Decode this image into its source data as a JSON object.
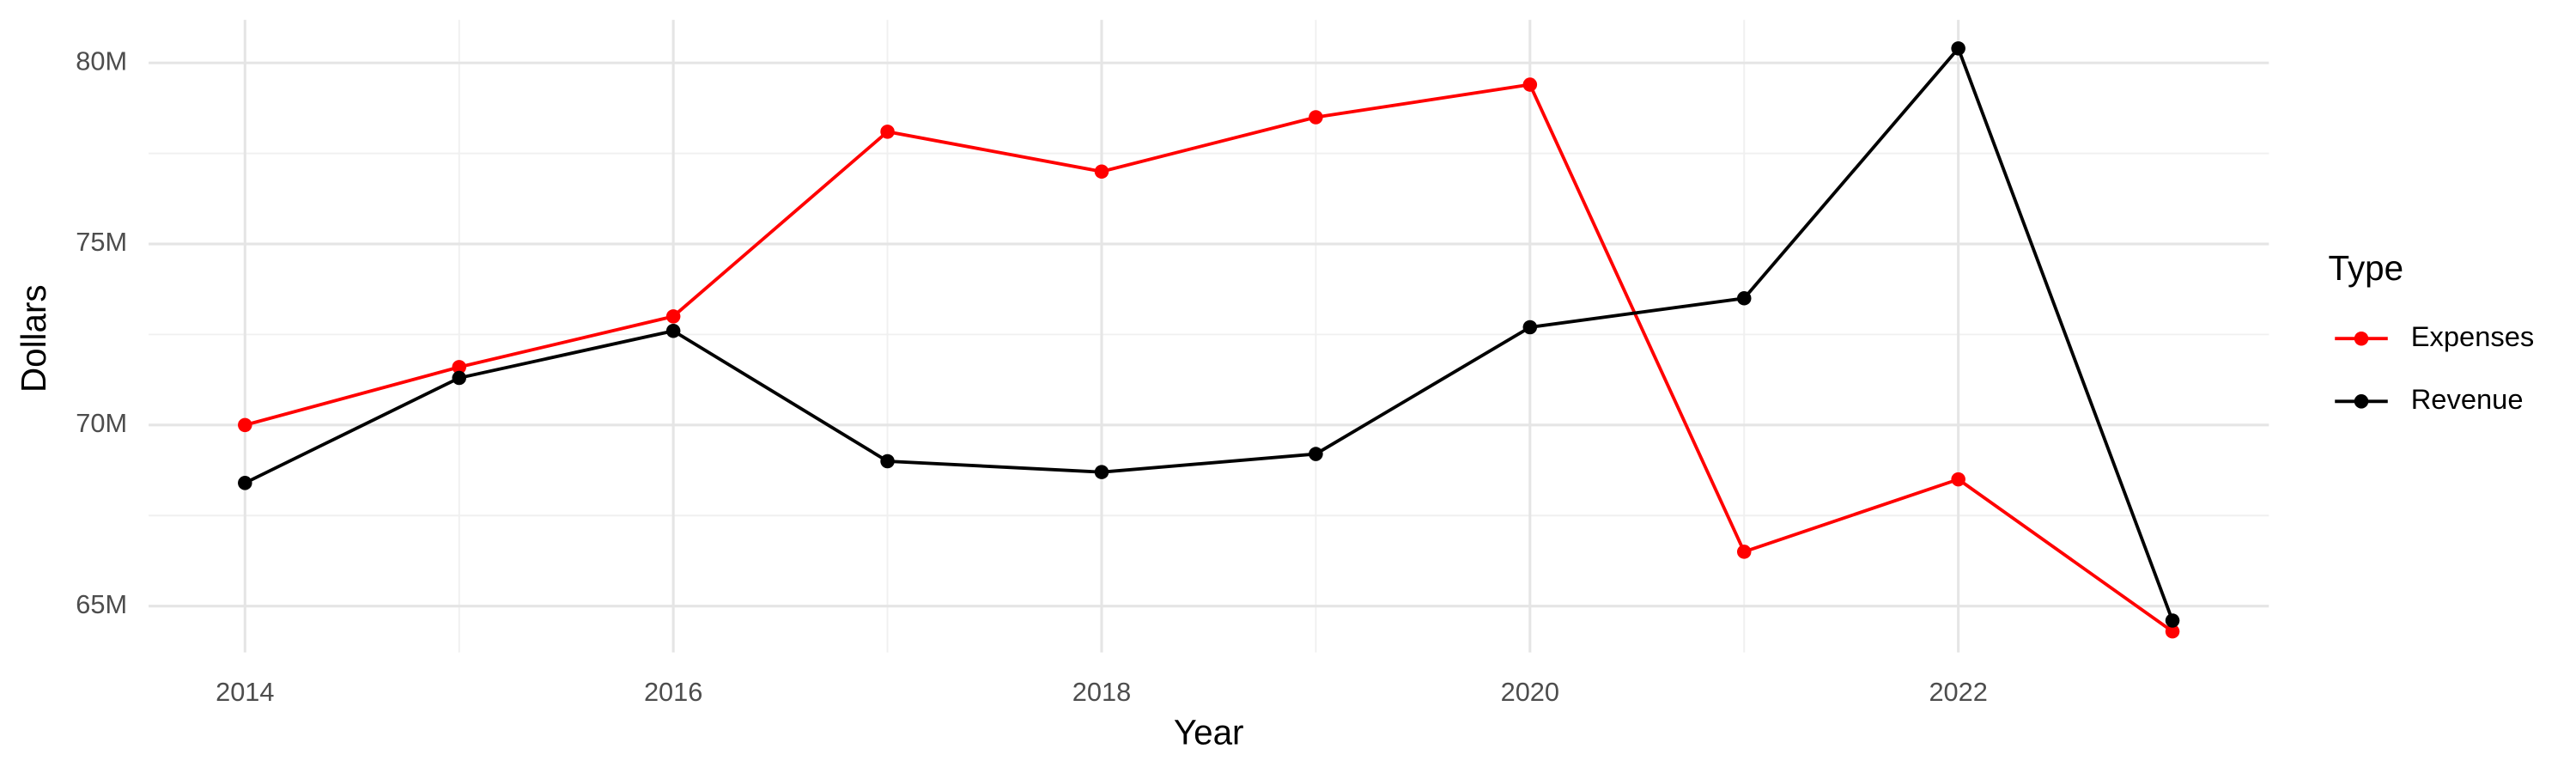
{
  "chart_data": {
    "type": "line",
    "x_label": "Year",
    "y_label": "Dollars",
    "x": [
      2014,
      2015,
      2016,
      2017,
      2018,
      2019,
      2020,
      2021,
      2022,
      2023
    ],
    "series": [
      {
        "name": "Expenses",
        "color": "#ff0000",
        "values": [
          70000000,
          71600000,
          73000000,
          78100000,
          77000000,
          78500000,
          79400000,
          66500000,
          68500000,
          64300000
        ]
      },
      {
        "name": "Revenue",
        "color": "#000000",
        "values": [
          68400000,
          71300000,
          72600000,
          69000000,
          68700000,
          69200000,
          72700000,
          73500000,
          80400000,
          64600000
        ]
      }
    ],
    "xlim": [
      2013.55,
      2023.45
    ],
    "xticks": [
      2014,
      2016,
      2018,
      2020,
      2022
    ],
    "ylim": [
      63720000,
      81190000
    ],
    "yticks": [
      {
        "value": 65000000,
        "label": "65M"
      },
      {
        "value": 70000000,
        "label": "70M"
      },
      {
        "value": 75000000,
        "label": "75M"
      },
      {
        "value": 80000000,
        "label": "80M"
      }
    ],
    "grid": true,
    "legend": {
      "title": "Type",
      "position": "right"
    }
  }
}
